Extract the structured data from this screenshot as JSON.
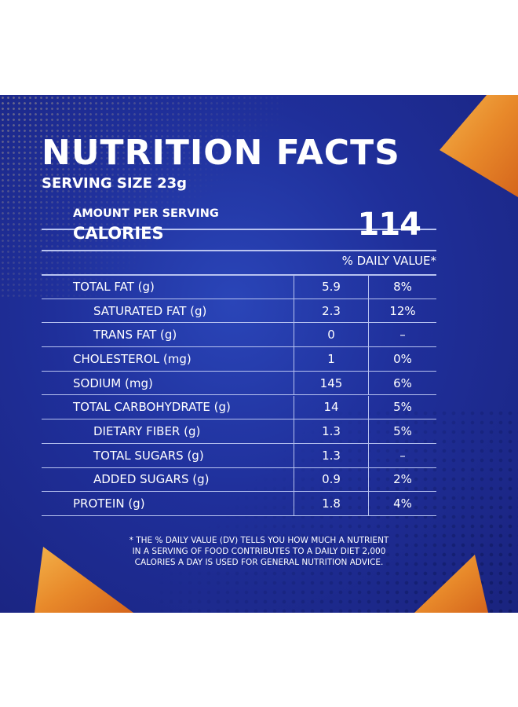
{
  "title": "NUTRITION FACTS",
  "serving_size": "SERVING SIZE 23g",
  "amount_per_serving": "AMOUNT PER SERVING",
  "calories_label": "CALORIES",
  "calories_value": "114",
  "daily_value_header": "% DAILY VALUE*",
  "rows": [
    {
      "name": "TOTAL FAT (g)",
      "amount": "5.9",
      "dv": "8%",
      "indent": false
    },
    {
      "name": "SATURATED FAT (g)",
      "amount": "2.3",
      "dv": "12%",
      "indent": true
    },
    {
      "name": "TRANS FAT (g)",
      "amount": "0",
      "dv": "–",
      "indent": true
    },
    {
      "name": "CHOLESTEROL (mg)",
      "amount": "1",
      "dv": "0%",
      "indent": false
    },
    {
      "name": "SODIUM (mg)",
      "amount": "145",
      "dv": "6%",
      "indent": false
    },
    {
      "name": "TOTAL CARBOHYDRATE (g)",
      "amount": "14",
      "dv": "5%",
      "indent": false
    },
    {
      "name": "DIETARY FIBER (g)",
      "amount": "1.3",
      "dv": "5%",
      "indent": true
    },
    {
      "name": "TOTAL SUGARS (g)",
      "amount": "1.3",
      "dv": "–",
      "indent": true
    },
    {
      "name": "ADDED SUGARS (g)",
      "amount": "0.9",
      "dv": "2%",
      "indent": true
    },
    {
      "name": "PROTEIN (g)",
      "amount": "1.8",
      "dv": "4%",
      "indent": false
    }
  ],
  "footnote": [
    "* THE % DAILY VALUE (DV) TELLS YOU HOW MUCH A NUTRIENT",
    "IN A SERVING OF FOOD CONTRIBUTES TO A DAILY DIET 2,000",
    "CALORIES A DAY IS USED FOR GENERAL NUTRITION ADVICE."
  ],
  "colors": {
    "background": "#1f2f9a",
    "lines": "#b8c3f0",
    "chip": "#e8892a"
  }
}
